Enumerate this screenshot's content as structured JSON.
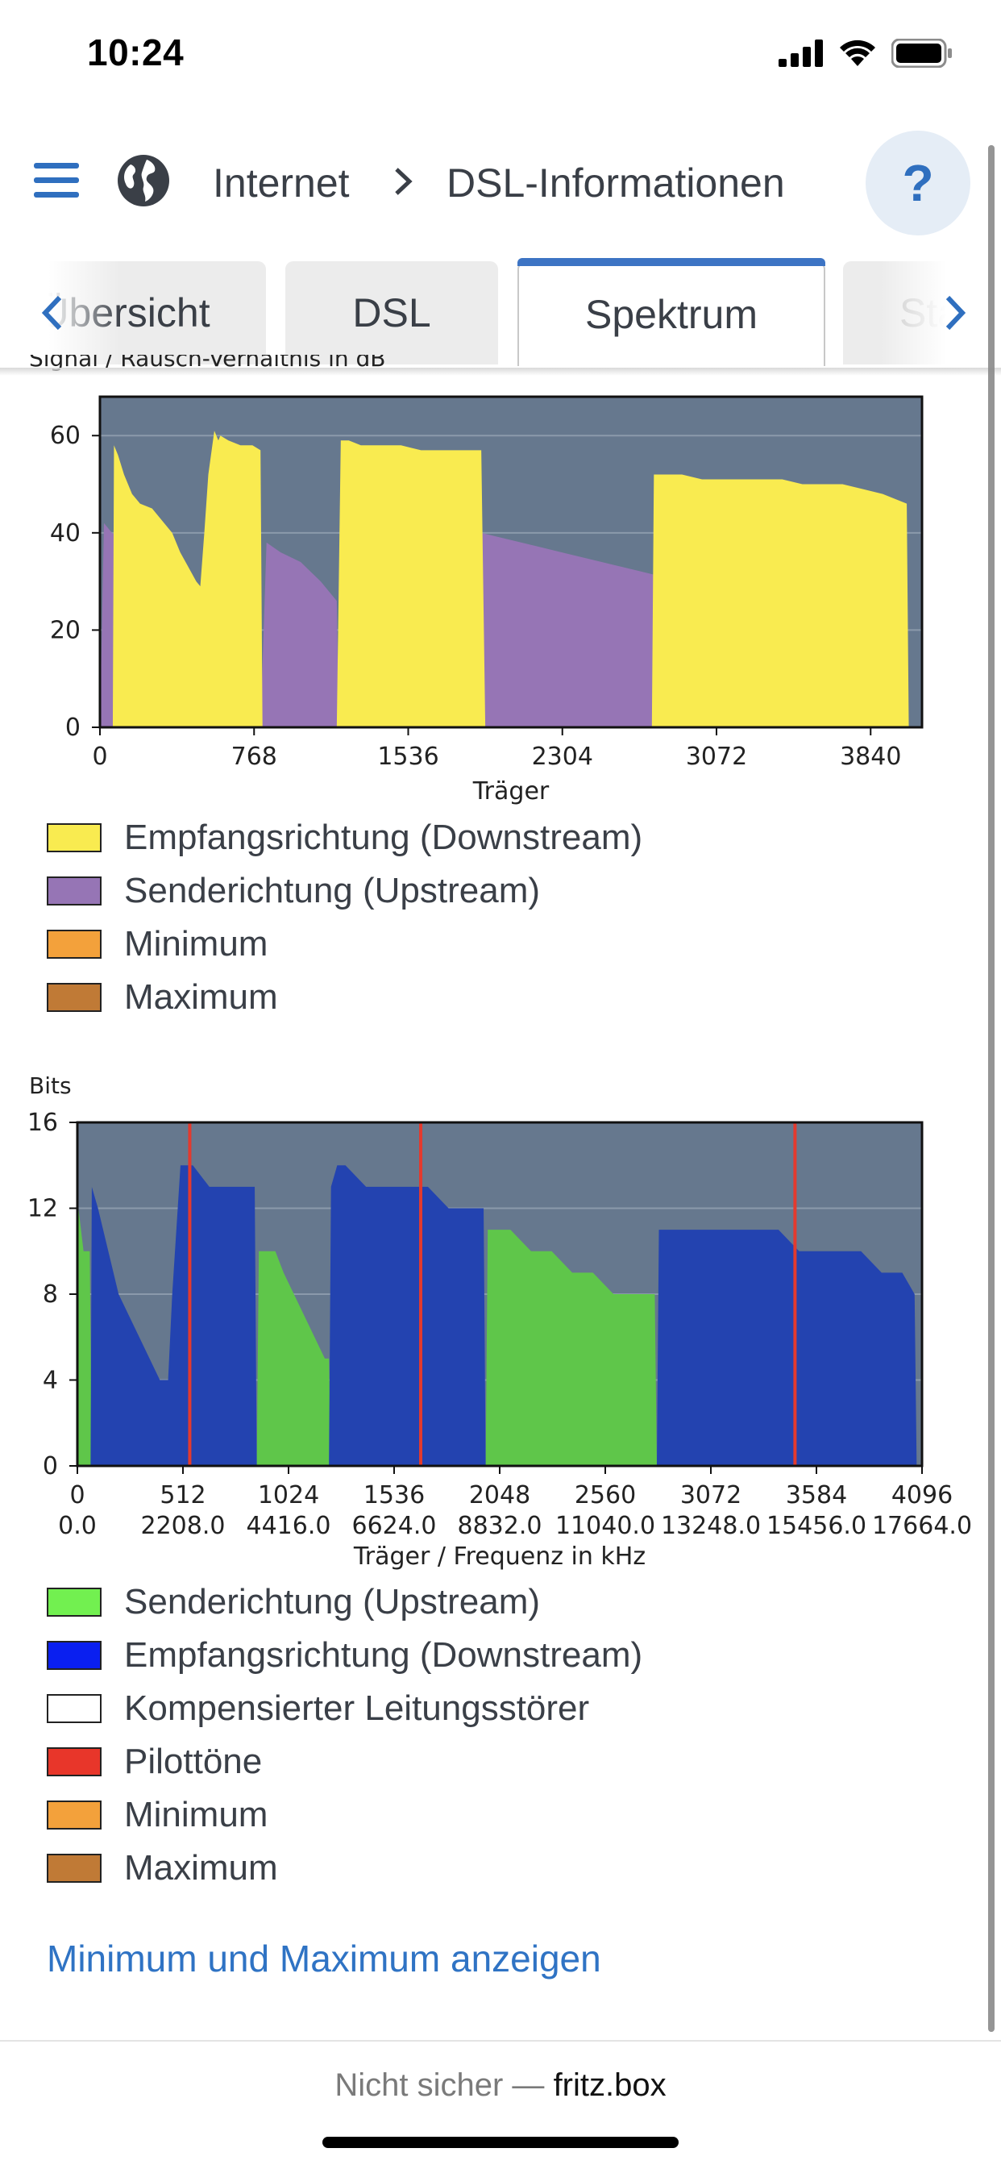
{
  "status_bar": {
    "time": "10:24"
  },
  "header": {
    "breadcrumb": [
      "Internet",
      "DSL-Informationen"
    ],
    "help_label": "?"
  },
  "tabs": {
    "items": [
      "Übersicht",
      "DSL",
      "Spektrum",
      "Stat"
    ],
    "active": "Spektrum"
  },
  "colors": {
    "accent": "#3d74c4",
    "plot_bg": "#66788e",
    "downstream_snr": "#f9eb50",
    "upstream_snr": "#9675b5",
    "minimum": "#f3a13b",
    "maximum": "#c07a36",
    "bits_upstream": "#5fc64a",
    "bits_downstream": "#2343b0",
    "pilot": "#e33a2e",
    "legend_upstream_bits": "#72f050",
    "legend_downstream_bits": "#0a1ff0",
    "legend_pilot": "#e8362a"
  },
  "chart_data": [
    {
      "type": "area",
      "title": "Signal / Rausch-Verhältnis in dB",
      "xlabel": "Träger",
      "ylabel": "Signal / Rausch-Verhältnis in dB",
      "xlim": [
        0,
        4096
      ],
      "ylim": [
        0,
        68
      ],
      "xticks": [
        0,
        768,
        1536,
        2304,
        3072,
        3840
      ],
      "yticks": [
        0,
        20,
        40,
        60
      ],
      "grid": true,
      "series": [
        {
          "name": "Sendericht­ung (Upstream)",
          "color": "#9675b5",
          "x": [
            0,
            20,
            60,
            100,
            800,
            830,
            900,
            1000,
            1100,
            1180,
            1190,
            1880,
            1890,
            1900,
            2000,
            2100,
            2200,
            2300,
            2400,
            2500,
            2600,
            2700,
            2800,
            2810,
            2820
          ],
          "y": [
            0,
            42,
            40,
            39,
            0,
            38,
            36,
            34,
            30,
            26,
            0,
            0,
            40,
            40,
            39,
            38,
            37,
            36,
            35,
            34,
            33,
            32,
            31,
            30,
            0
          ]
        },
        {
          "name": "Empfangsrichtung (Downstream)",
          "color": "#f9eb50",
          "x": [
            64,
            70,
            90,
            120,
            160,
            200,
            260,
            300,
            360,
            400,
            440,
            480,
            500,
            520,
            540,
            560,
            570,
            580,
            590,
            600,
            640,
            700,
            760,
            800,
            810,
            1180,
            1200,
            1240,
            1300,
            1400,
            1500,
            1600,
            1700,
            1800,
            1900,
            1920,
            2750,
            2760,
            2800,
            2900,
            3000,
            3100,
            3200,
            3300,
            3400,
            3500,
            3600,
            3700,
            3800,
            3900,
            4020,
            4030
          ],
          "y": [
            0,
            58,
            56,
            52,
            48,
            46,
            45,
            43,
            40,
            36,
            33,
            30,
            29,
            40,
            52,
            58,
            61,
            60,
            59,
            60,
            59,
            58,
            58,
            57,
            0,
            0,
            59,
            59,
            58,
            58,
            58,
            57,
            57,
            57,
            57,
            0,
            0,
            52,
            52,
            52,
            51,
            51,
            51,
            51,
            51,
            50,
            50,
            50,
            49,
            48,
            46,
            0
          ]
        }
      ],
      "legend": [
        {
          "label": "Empfangsrichtung (Downstream)",
          "color": "#f9eb50"
        },
        {
          "label": "Senderichtung (Upstream)",
          "color": "#9675b5"
        },
        {
          "label": "Minimum",
          "color": "#f3a13b"
        },
        {
          "label": "Maximum",
          "color": "#c07a36"
        }
      ]
    },
    {
      "type": "area",
      "title": "Bits",
      "xlabel": "Träger / Frequenz in kHz",
      "ylabel": "Bits",
      "xlim": [
        0,
        4096
      ],
      "ylim": [
        0,
        16
      ],
      "xticks": [
        0,
        512,
        1024,
        1536,
        2048,
        2560,
        3072,
        3584,
        4096
      ],
      "xticks_secondary": [
        "0.0",
        "2208.0",
        "4416.0",
        "6624.0",
        "8832.0",
        "11040.0",
        "13248.0",
        "15456.0",
        "17664.0"
      ],
      "yticks": [
        0,
        4,
        8,
        12,
        16
      ],
      "grid": true,
      "series": [
        {
          "name": "Senderichtung (Upstream)",
          "color": "#5fc64a",
          "x": [
            0,
            5,
            30,
            60,
            70,
            870,
            880,
            960,
            1000,
            1050,
            1100,
            1150,
            1200,
            1220,
            1230,
            1980,
            1990,
            2100,
            2200,
            2300,
            2400,
            2500,
            2600,
            2800,
            2810
          ],
          "y": [
            0,
            12,
            10,
            10,
            0,
            0,
            10,
            10,
            9,
            8,
            7,
            6,
            5,
            5,
            0,
            0,
            11,
            11,
            10,
            10,
            9,
            9,
            8,
            8,
            0
          ]
        },
        {
          "name": "Empfangsrichtung (Downstream)",
          "color": "#2343b0",
          "x": [
            64,
            70,
            100,
            150,
            200,
            250,
            300,
            350,
            400,
            440,
            460,
            500,
            520,
            560,
            640,
            700,
            860,
            870,
            1220,
            1230,
            1260,
            1300,
            1400,
            1500,
            1600,
            1700,
            1800,
            1900,
            1970,
            1980,
            2810,
            2820,
            2900,
            3000,
            3100,
            3200,
            3300,
            3400,
            3500,
            3600,
            3700,
            3800,
            3900,
            4000,
            4060,
            4070
          ],
          "y": [
            0,
            13,
            12,
            10,
            8,
            7,
            6,
            5,
            4,
            4,
            8,
            14,
            14,
            14,
            13,
            13,
            13,
            0,
            0,
            13,
            14,
            14,
            13,
            13,
            13,
            13,
            12,
            12,
            12,
            0,
            0,
            11,
            11,
            11,
            11,
            11,
            11,
            11,
            10,
            10,
            10,
            10,
            9,
            9,
            8,
            0
          ]
        }
      ],
      "pilot_tones": [
        545,
        1665,
        3480
      ],
      "legend": [
        {
          "label": "Senderichtung (Upstream)",
          "color": "#72f050"
        },
        {
          "label": "Empfangsrichtung (Downstream)",
          "color": "#0a1ff0"
        },
        {
          "label": "Kompensierter Leitungsstörer",
          "color": "#ffffff"
        },
        {
          "label": "Pilottöne",
          "color": "#e8362a"
        },
        {
          "label": "Minimum",
          "color": "#f3a13b"
        },
        {
          "label": "Maximum",
          "color": "#c07a36"
        }
      ]
    }
  ],
  "link": {
    "label": "Minimum und Maximum anzeigen"
  },
  "url_bar": {
    "prefix": "Nicht sicher —",
    "host": "fritz.box"
  }
}
